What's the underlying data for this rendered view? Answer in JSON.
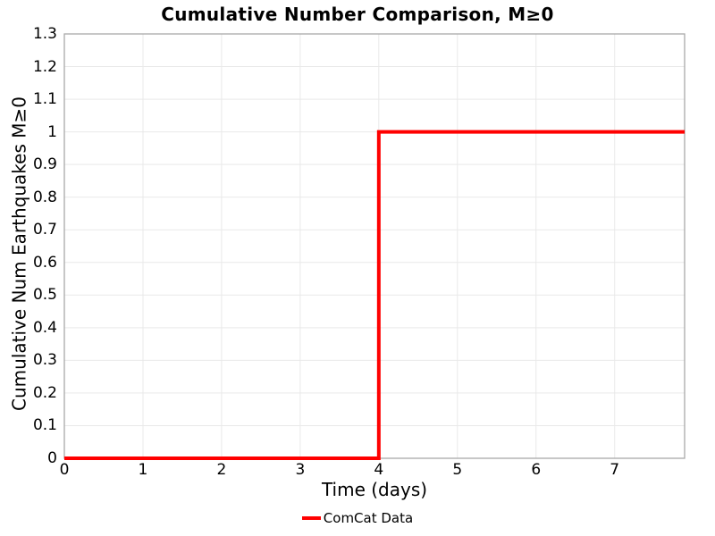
{
  "chart_data": {
    "type": "line",
    "subtype": "step",
    "title": "Cumulative Number Comparison, M≥0",
    "xlabel": "Time (days)",
    "ylabel": "Cumulative Num Earthquakes M≥0",
    "xlim": [
      0,
      7.89
    ],
    "ylim": [
      0,
      1.3
    ],
    "xticks": [
      0,
      1,
      2,
      3,
      4,
      5,
      6,
      7
    ],
    "yticks": [
      0,
      0.1,
      0.2,
      0.3,
      0.4,
      0.5,
      0.6,
      0.7,
      0.8,
      0.9,
      1,
      1.1,
      1.2,
      1.3
    ],
    "grid": true,
    "legend_position": "bottom-center",
    "colors": {
      "background": "#ffffff",
      "frame": "#a9a9a9",
      "gridline": "#e9e9e9",
      "text": "#000000"
    },
    "series": [
      {
        "name": "ComCat Data",
        "color": "#ff0000",
        "line_width": 4,
        "points": [
          [
            0,
            0
          ],
          [
            4.0,
            0
          ],
          [
            4.0,
            1
          ],
          [
            7.89,
            1
          ]
        ]
      }
    ]
  }
}
